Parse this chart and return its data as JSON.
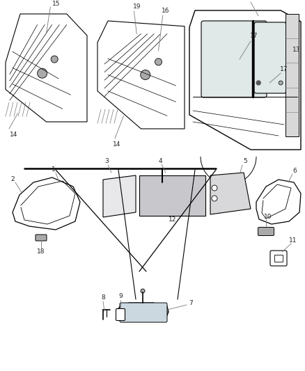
{
  "bg_color": "#ffffff",
  "lc": "#000000",
  "gray": "#777777",
  "lgray": "#aaaaaa",
  "dgray": "#555555",
  "figsize": [
    4.38,
    5.33
  ],
  "dpi": 100
}
